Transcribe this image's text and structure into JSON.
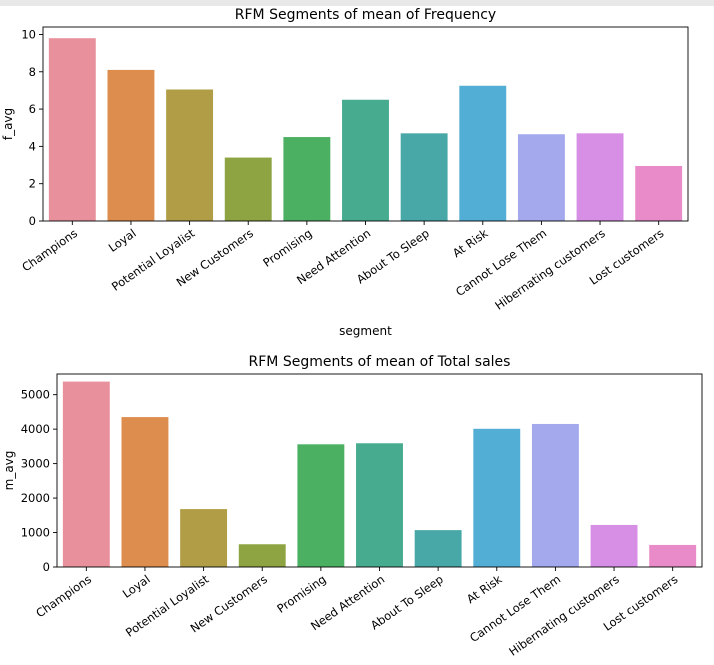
{
  "chart_data": [
    {
      "type": "bar",
      "title": "RFM Segments of mean of Frequency",
      "xlabel": "segment",
      "ylabel": "f_avg",
      "ylim": [
        0,
        10.4
      ],
      "yticks": [
        0,
        2,
        4,
        6,
        8,
        10
      ],
      "categories": [
        "Champions",
        "Loyal",
        "Potential Loyalist",
        "New Customers",
        "Promising",
        "Need Attention",
        "About To Sleep",
        "At Risk",
        "Cannot Lose Them",
        "Hibernating customers",
        "Lost customers"
      ],
      "values": [
        9.8,
        8.1,
        7.05,
        3.4,
        4.5,
        6.5,
        4.7,
        7.25,
        4.65,
        4.7,
        2.95
      ],
      "colors": [
        "#e8919c",
        "#dd8d4e",
        "#b19d45",
        "#8ea443",
        "#4cb062",
        "#47ab90",
        "#48a8a8",
        "#52aed4",
        "#a3a9ec",
        "#d78ee5",
        "#e98bc9"
      ],
      "grid": false
    },
    {
      "type": "bar",
      "title": "RFM Segments of mean of Total sales",
      "xlabel": "",
      "ylabel": "m_avg",
      "ylim": [
        0,
        5600
      ],
      "yticks": [
        0,
        1000,
        2000,
        3000,
        4000,
        5000
      ],
      "categories": [
        "Champions",
        "Loyal",
        "Potential Loyalist",
        "New Customers",
        "Promising",
        "Need Attention",
        "About To Sleep",
        "At Risk",
        "Cannot Lose Them",
        "Hibernating customers",
        "Lost customers"
      ],
      "values": [
        5380,
        4350,
        1680,
        660,
        3560,
        3590,
        1070,
        4010,
        4150,
        1220,
        640
      ],
      "colors": [
        "#e8919c",
        "#dd8d4e",
        "#b19d45",
        "#8ea443",
        "#4cb062",
        "#47ab90",
        "#48a8a8",
        "#52aed4",
        "#a3a9ec",
        "#d78ee5",
        "#e98bc9"
      ],
      "grid": false
    }
  ]
}
